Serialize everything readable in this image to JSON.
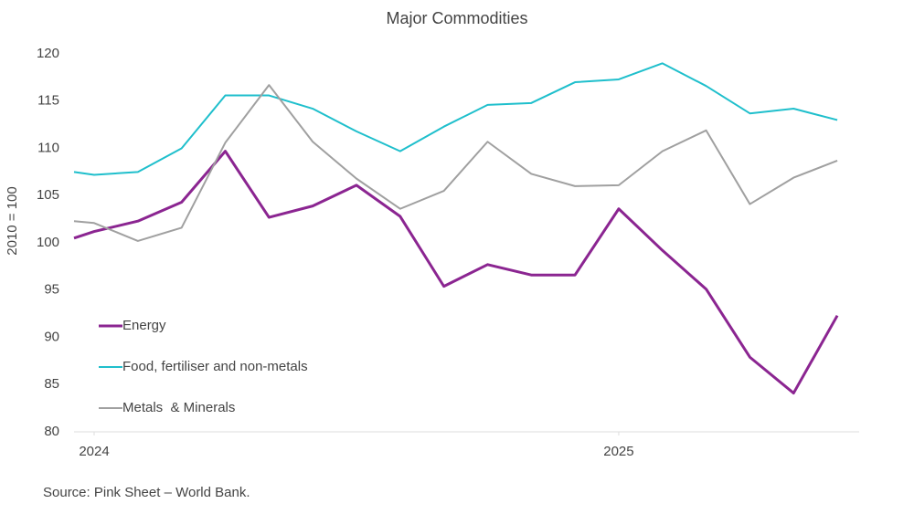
{
  "chart_data": {
    "type": "line",
    "title": "Major Commodities",
    "ylabel": "2010 = 100",
    "source": "Source: Pink Sheet – World Bank.",
    "x": [
      -0.46,
      0,
      1,
      2,
      3,
      4,
      5,
      6,
      7,
      8,
      9,
      10,
      11,
      12,
      13,
      14,
      15,
      16,
      17
    ],
    "xlim": [
      -0.46,
      17.5
    ],
    "xticks": [
      {
        "value": 0,
        "label": "2024"
      },
      {
        "value": 12,
        "label": "2025"
      }
    ],
    "ylim": [
      80,
      120
    ],
    "yticks": [
      80,
      85,
      90,
      95,
      100,
      105,
      110,
      115,
      120
    ],
    "grid": false,
    "legend": "lower left",
    "series": [
      {
        "name": "Energy",
        "color": "#8b2591",
        "values": [
          100.5,
          101.2,
          102.3,
          104.3,
          109.7,
          102.7,
          103.9,
          106.1,
          102.8,
          95.4,
          97.7,
          96.6,
          96.6,
          103.6,
          99.2,
          95.1,
          87.9,
          84.1,
          92.3
        ]
      },
      {
        "name": "Food, fertiliser and non-metals",
        "color": "#1fbfcc",
        "values": [
          107.5,
          107.2,
          107.5,
          110.0,
          115.6,
          115.6,
          114.2,
          111.8,
          109.7,
          112.3,
          114.6,
          114.8,
          117.0,
          117.3,
          119.0,
          116.6,
          113.7,
          114.2,
          113.0
        ]
      },
      {
        "name": "Metals  & Minerals",
        "color": "#a0a0a0",
        "values": [
          102.3,
          102.1,
          100.2,
          101.6,
          110.6,
          116.7,
          110.7,
          106.8,
          103.6,
          105.5,
          110.7,
          107.3,
          106.0,
          106.1,
          109.7,
          111.9,
          104.1,
          106.9,
          108.7
        ]
      }
    ]
  }
}
